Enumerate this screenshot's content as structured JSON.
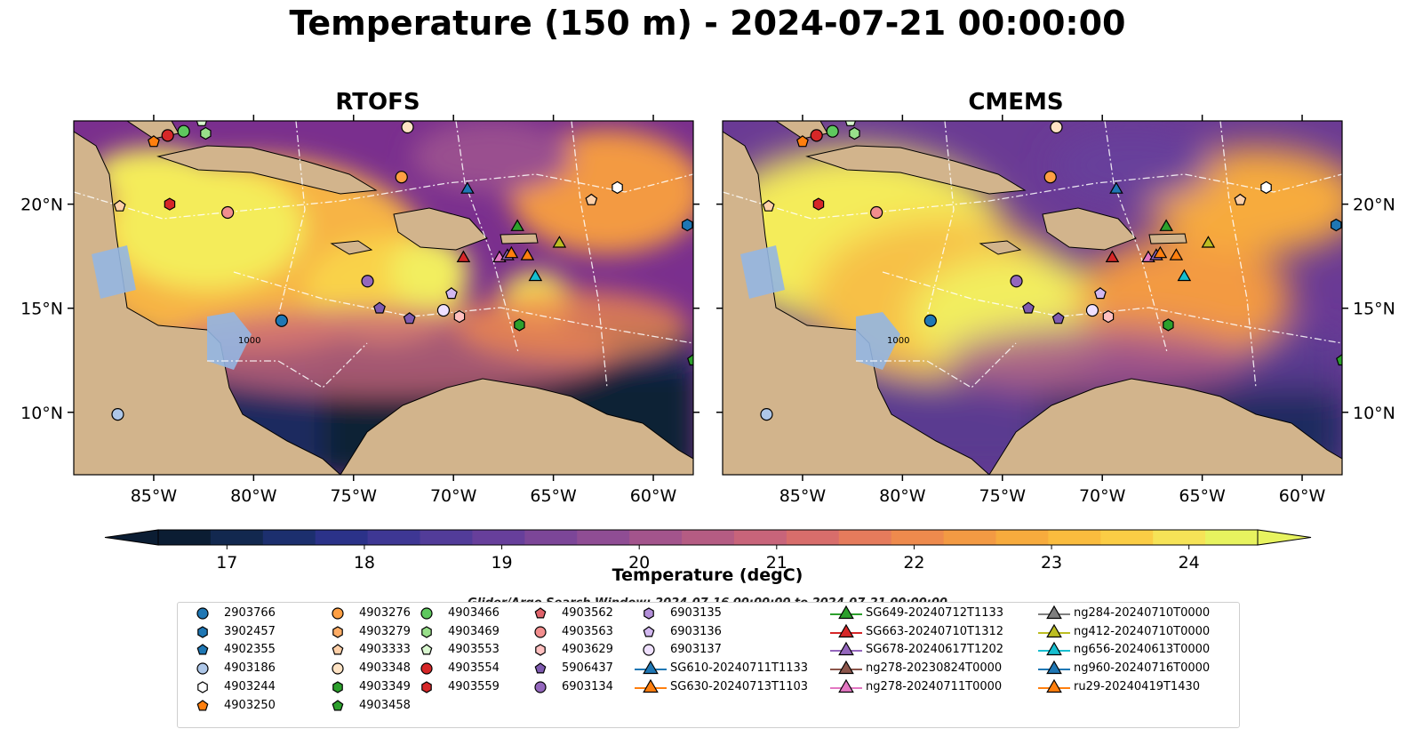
{
  "title": "Temperature (150 m) - 2024-07-21 00:00:00",
  "panels": [
    {
      "title": "RTOFS"
    },
    {
      "title": "CMEMS"
    }
  ],
  "axes": {
    "lon_ticks": [
      "85°W",
      "80°W",
      "75°W",
      "70°W",
      "65°W",
      "60°W"
    ],
    "lon_values": [
      -85,
      -80,
      -75,
      -70,
      -65,
      -60
    ],
    "lat_ticks": [
      "20°N",
      "15°N",
      "10°N"
    ],
    "lat_values": [
      20,
      15,
      10
    ],
    "lon_range": [
      -89,
      -58
    ],
    "lat_range": [
      7,
      24
    ]
  },
  "bathymetry_label": "1000",
  "colorbar": {
    "label": "Temperature (degC)",
    "min": 16.5,
    "max": 24.5,
    "ticks": [
      "17",
      "18",
      "19",
      "20",
      "21",
      "22",
      "23",
      "24"
    ],
    "tick_values": [
      17,
      18,
      19,
      20,
      21,
      22,
      23,
      24
    ],
    "colors": [
      "#0b1d33",
      "#12284f",
      "#1c2f6e",
      "#2b3289",
      "#3e3794",
      "#523c99",
      "#673f9b",
      "#7c4698",
      "#8f4d94",
      "#a3548c",
      "#b55c83",
      "#c8647a",
      "#d86d6b",
      "#e57b5c",
      "#ee8a4d",
      "#f39a43",
      "#f7ab3d",
      "#fabc3e",
      "#fbcd45",
      "#f6e357",
      "#e7f35f"
    ]
  },
  "search_window": "Glider/Argo Search Window: 2024-07-16 00:00:00 to 2024-07-21 00:00:00",
  "legend_columns": [
    [
      {
        "label": "2903766",
        "shape": "circle",
        "color": "#1f77b4"
      },
      {
        "label": "3902457",
        "shape": "hexagon",
        "color": "#1f77b4"
      },
      {
        "label": "4902355",
        "shape": "pentagon",
        "color": "#1f77b4"
      },
      {
        "label": "4903186",
        "shape": "circle",
        "color": "#aec7e8"
      },
      {
        "label": "4903244",
        "shape": "hexagon",
        "color": "#ffffff"
      },
      {
        "label": "4903250",
        "shape": "pentagon",
        "color": "#ff7f0e"
      }
    ],
    [
      {
        "label": "4903276",
        "shape": "circle",
        "color": "#ff9f43"
      },
      {
        "label": "4903279",
        "shape": "hexagon",
        "color": "#ffad66"
      },
      {
        "label": "4903333",
        "shape": "pentagon",
        "color": "#ffd0a8"
      },
      {
        "label": "4903348",
        "shape": "circle",
        "color": "#ffe3c4"
      },
      {
        "label": "4903349",
        "shape": "hexagon",
        "color": "#2ca02c"
      },
      {
        "label": "4903458",
        "shape": "pentagon",
        "color": "#2ca02c"
      }
    ],
    [
      {
        "label": "4903466",
        "shape": "circle",
        "color": "#5ec85e"
      },
      {
        "label": "4903469",
        "shape": "hexagon",
        "color": "#98df8a"
      },
      {
        "label": "4903553",
        "shape": "pentagon",
        "color": "#d9f7d0"
      },
      {
        "label": "4903554",
        "shape": "circle",
        "color": "#d62728"
      },
      {
        "label": "4903559",
        "shape": "hexagon",
        "color": "#d62728"
      }
    ],
    [
      {
        "label": "4903562",
        "shape": "pentagon",
        "color": "#e0636b"
      },
      {
        "label": "4903563",
        "shape": "circle",
        "color": "#f28e8e"
      },
      {
        "label": "4903629",
        "shape": "hexagon",
        "color": "#ffc0c0"
      },
      {
        "label": "5906437",
        "shape": "pentagon",
        "color": "#7f5ab0"
      },
      {
        "label": "6903134",
        "shape": "circle",
        "color": "#9467bd"
      }
    ],
    [
      {
        "label": "6903135",
        "shape": "hexagon",
        "color": "#b38fd9"
      },
      {
        "label": "6903136",
        "shape": "pentagon",
        "color": "#d2b8f0"
      },
      {
        "label": "6903137",
        "shape": "circle",
        "color": "#efe0ff"
      },
      {
        "label": "SG610-20240711T1133",
        "shape": "triangle",
        "color": "#1f77b4"
      },
      {
        "label": "SG630-20240713T1103",
        "shape": "triangle",
        "color": "#ff7f0e"
      }
    ],
    [
      {
        "label": "SG649-20240712T1133",
        "shape": "triangle",
        "color": "#2ca02c"
      },
      {
        "label": "SG663-20240710T1312",
        "shape": "triangle",
        "color": "#d62728"
      },
      {
        "label": "SG678-20240617T1202",
        "shape": "triangle",
        "color": "#9467bd"
      },
      {
        "label": "ng278-20230824T0000",
        "shape": "triangle",
        "color": "#8c564b"
      },
      {
        "label": "ng278-20240711T0000",
        "shape": "triangle",
        "color": "#e377c2"
      }
    ],
    [
      {
        "label": "ng284-20240710T0000",
        "shape": "triangle",
        "color": "#7f7f7f"
      },
      {
        "label": "ng412-20240710T0000",
        "shape": "triangle",
        "color": "#bcbd22"
      },
      {
        "label": "ng656-20240613T0000",
        "shape": "triangle",
        "color": "#17becf"
      },
      {
        "label": "ng960-20240716T0000",
        "shape": "triangle",
        "color": "#1f77b4"
      },
      {
        "label": "ru29-20240419T1430",
        "shape": "triangle",
        "color": "#ff7f0e"
      }
    ]
  ],
  "map_markers": [
    {
      "lon": -85.0,
      "lat": 23.0,
      "shape": "pentagon",
      "color": "#ff7f0e"
    },
    {
      "lon": -84.3,
      "lat": 23.3,
      "shape": "circle",
      "color": "#d62728"
    },
    {
      "lon": -83.5,
      "lat": 23.5,
      "shape": "circle",
      "color": "#5ec85e"
    },
    {
      "lon": -82.6,
      "lat": 24.0,
      "shape": "pentagon",
      "color": "#d9f7d0"
    },
    {
      "lon": -82.4,
      "lat": 23.4,
      "shape": "hexagon",
      "color": "#98df8a"
    },
    {
      "lon": -72.3,
      "lat": 23.7,
      "shape": "circle",
      "color": "#ffe3c4"
    },
    {
      "lon": -72.6,
      "lat": 21.3,
      "shape": "circle",
      "color": "#ff9f43"
    },
    {
      "lon": -86.7,
      "lat": 19.9,
      "shape": "pentagon",
      "color": "#ffd0a8"
    },
    {
      "lon": -84.2,
      "lat": 20.0,
      "shape": "hexagon",
      "color": "#d62728"
    },
    {
      "lon": -81.3,
      "lat": 19.6,
      "shape": "circle",
      "color": "#f28e8e"
    },
    {
      "lon": -69.3,
      "lat": 20.7,
      "shape": "triangle",
      "color": "#1f77b4"
    },
    {
      "lon": -63.1,
      "lat": 20.2,
      "shape": "pentagon",
      "color": "#ffd0a8"
    },
    {
      "lon": -61.8,
      "lat": 20.8,
      "shape": "hexagon",
      "color": "#ffffff"
    },
    {
      "lon": -58.3,
      "lat": 19.0,
      "shape": "hexagon",
      "color": "#1f77b4"
    },
    {
      "lon": -66.8,
      "lat": 18.9,
      "shape": "triangle",
      "color": "#2ca02c"
    },
    {
      "lon": -64.7,
      "lat": 18.1,
      "shape": "triangle",
      "color": "#bcbd22"
    },
    {
      "lon": -69.5,
      "lat": 17.4,
      "shape": "triangle",
      "color": "#d62728"
    },
    {
      "lon": -67.7,
      "lat": 17.4,
      "shape": "triangle",
      "color": "#e377c2"
    },
    {
      "lon": -67.3,
      "lat": 17.5,
      "shape": "triangle",
      "color": "#9467bd"
    },
    {
      "lon": -67.1,
      "lat": 17.6,
      "shape": "triangle",
      "color": "#ff7f0e"
    },
    {
      "lon": -66.3,
      "lat": 17.5,
      "shape": "triangle",
      "color": "#ff7f0e"
    },
    {
      "lon": -65.9,
      "lat": 16.5,
      "shape": "triangle",
      "color": "#17becf"
    },
    {
      "lon": -74.3,
      "lat": 16.3,
      "shape": "circle",
      "color": "#9467bd"
    },
    {
      "lon": -70.1,
      "lat": 15.7,
      "shape": "pentagon",
      "color": "#d2b8f0"
    },
    {
      "lon": -73.7,
      "lat": 15.0,
      "shape": "pentagon",
      "color": "#7f5ab0"
    },
    {
      "lon": -72.2,
      "lat": 14.5,
      "shape": "pentagon",
      "color": "#7f5ab0"
    },
    {
      "lon": -70.5,
      "lat": 14.9,
      "shape": "circle",
      "color": "#efe0ff"
    },
    {
      "lon": -69.7,
      "lat": 14.6,
      "shape": "hexagon",
      "color": "#ffc0c0"
    },
    {
      "lon": -78.6,
      "lat": 14.4,
      "shape": "circle",
      "color": "#1f77b4"
    },
    {
      "lon": -66.7,
      "lat": 14.2,
      "shape": "hexagon",
      "color": "#2ca02c"
    },
    {
      "lon": -58.0,
      "lat": 12.5,
      "shape": "pentagon",
      "color": "#2ca02c"
    },
    {
      "lon": -86.8,
      "lat": 9.9,
      "shape": "circle",
      "color": "#aec7e8"
    }
  ],
  "colors": {
    "land": "#d2b48c",
    "shelf": "#94b6e2",
    "deep_cold": "#0c2136",
    "warm_core": "#f2ee5e"
  }
}
